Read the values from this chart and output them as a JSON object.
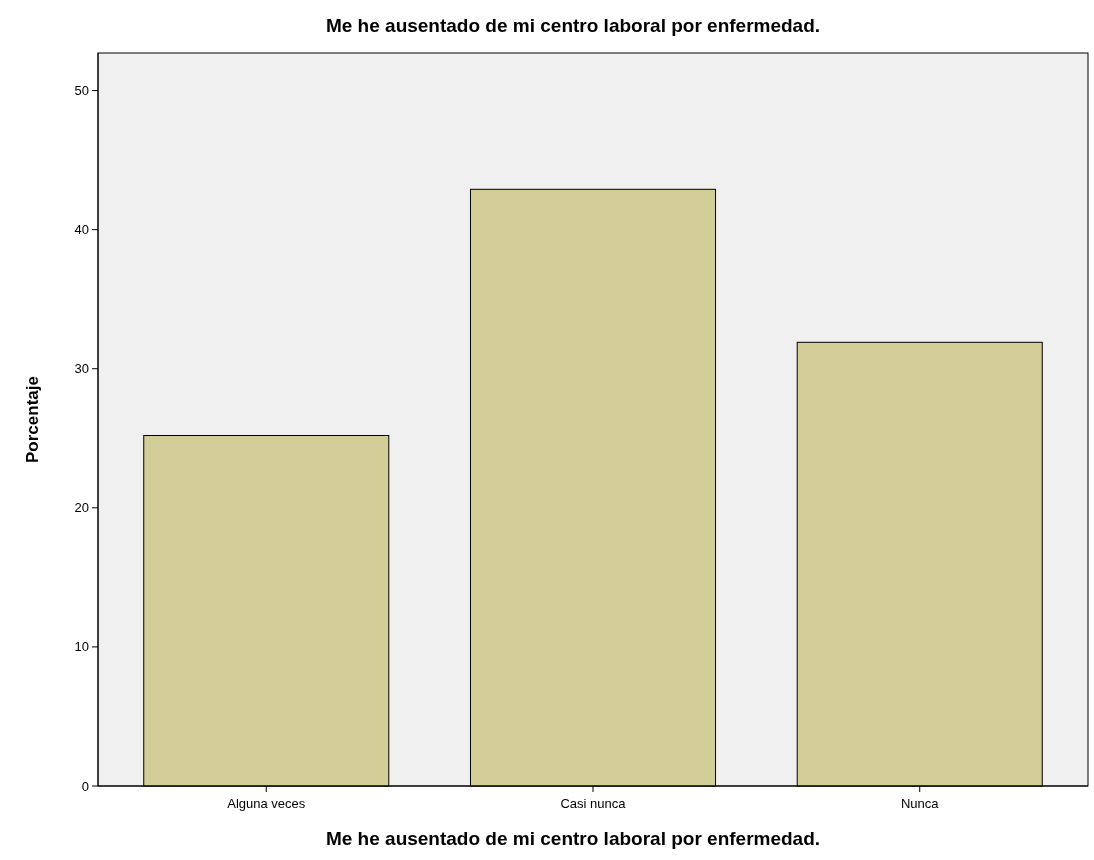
{
  "chart_data": {
    "type": "bar",
    "title": "Me he ausentado de mi centro laboral por enfermedad.",
    "xlabel": "Me he ausentado de mi centro laboral por enfermedad.",
    "ylabel": "Porcentaje",
    "categories": [
      "Alguna veces",
      "Casi nunca",
      "Nunca"
    ],
    "values": [
      25.2,
      42.9,
      31.9
    ],
    "color": "#d3ce97",
    "ylim": [
      0,
      52.7
    ],
    "yticks": [
      0,
      10,
      20,
      30,
      40,
      50
    ],
    "grid": false
  }
}
